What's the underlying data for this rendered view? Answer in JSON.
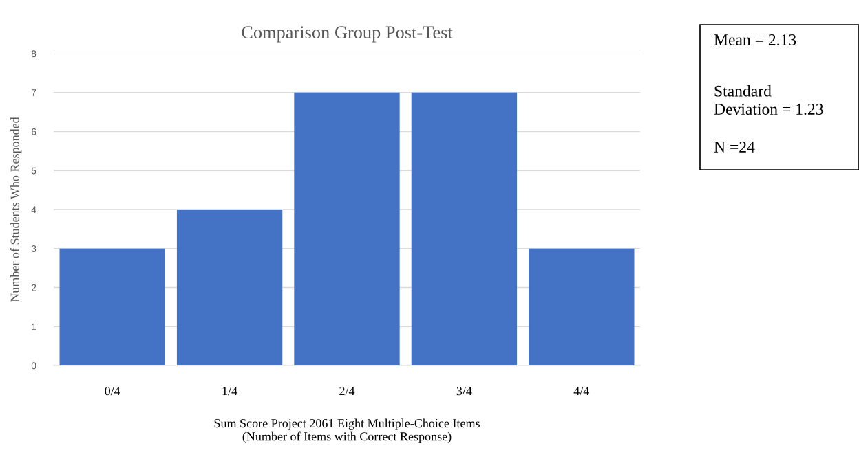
{
  "chart_data": {
    "type": "bar",
    "title": "Comparison Group Post-Test",
    "xlabel": "Sum Score Project 2061 Eight Multiple-Choice Items\n(Number of Items with Correct Response)",
    "ylabel": "Number of Students Who Responded",
    "categories": [
      "0/4",
      "1/4",
      "2/4",
      "3/4",
      "4/4"
    ],
    "values": [
      3,
      4,
      7,
      7,
      3
    ],
    "color": "#4472c4",
    "ylim": [
      0,
      8
    ],
    "yticks": [
      0,
      1,
      2,
      3,
      4,
      5,
      6,
      7,
      8
    ],
    "grid": "y",
    "annotations": [
      "Mean = 2.13",
      "Standard\nDeviation = 1.23",
      "N =24"
    ]
  }
}
